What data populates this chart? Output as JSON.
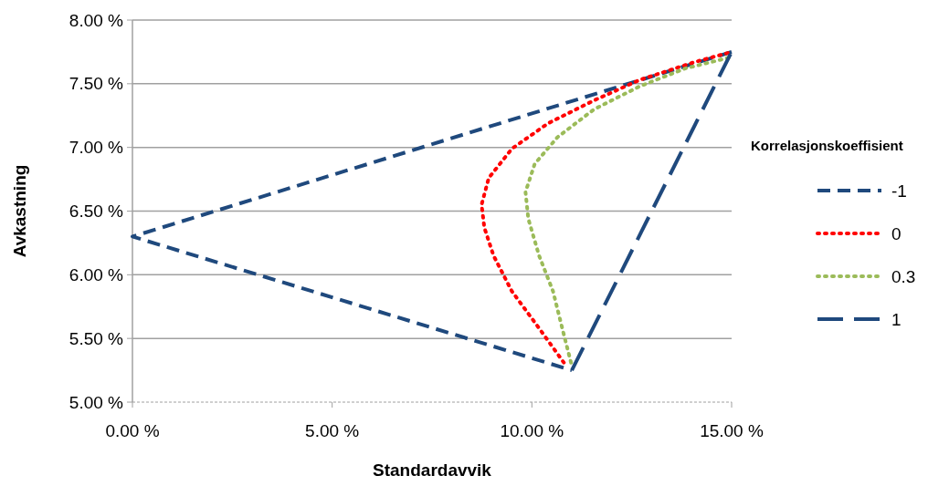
{
  "chart_data": {
    "type": "line",
    "xlabel": "Standardavvik",
    "ylabel": "Avkastning",
    "legend_title": "Korrelasjonskoeffisient",
    "legend": "right",
    "grid": "y",
    "xlim": [
      0,
      15
    ],
    "xticks": [
      {
        "value": 0,
        "label": "0.00 %"
      },
      {
        "value": 5,
        "label": "5.00 %"
      },
      {
        "value": 10,
        "label": "10.00 %"
      },
      {
        "value": 15,
        "label": "15.00 %"
      }
    ],
    "ylim": [
      5,
      8
    ],
    "yticks": [
      {
        "value": 5,
        "label": "5.00 %"
      },
      {
        "value": 5.5,
        "label": "5.50 %"
      },
      {
        "value": 6,
        "label": "6.00 %"
      },
      {
        "value": 6.5,
        "label": "6.50 %"
      },
      {
        "value": 7,
        "label": "7.00 %"
      },
      {
        "value": 7.5,
        "label": "7.50 %"
      },
      {
        "value": 8,
        "label": "8.00 %"
      }
    ],
    "series": [
      {
        "name": "-1",
        "color": "#1f497d",
        "line_style": "dashed",
        "x": [
          15,
          0,
          11
        ],
        "values": [
          7.75,
          6.3,
          5.25
        ]
      },
      {
        "name": "0",
        "color": "#ff0000",
        "line_style": "dotted",
        "x": [
          10.8,
          10.18,
          9.5,
          9.04,
          8.81,
          8.74,
          8.92,
          9.5,
          10.41,
          11.56,
          12.7,
          14.07,
          15
        ],
        "values": [
          5.31,
          5.58,
          5.87,
          6.15,
          6.37,
          6.55,
          6.76,
          6.99,
          7.19,
          7.37,
          7.53,
          7.67,
          7.75
        ]
      },
      {
        "name": "0.3",
        "color": "#9bbb59",
        "line_style": "dotted",
        "x": [
          10.98,
          10.76,
          10.53,
          10.18,
          9.91,
          9.84,
          10.07,
          10.64,
          11.56,
          12.7,
          13.84,
          15
        ],
        "values": [
          5.31,
          5.58,
          5.87,
          6.15,
          6.44,
          6.65,
          6.87,
          7.08,
          7.3,
          7.48,
          7.62,
          7.71
        ]
      },
      {
        "name": "1",
        "color": "#1f497d",
        "line_style": "dashed",
        "x": [
          11,
          15
        ],
        "values": [
          5.25,
          7.75
        ]
      }
    ]
  }
}
